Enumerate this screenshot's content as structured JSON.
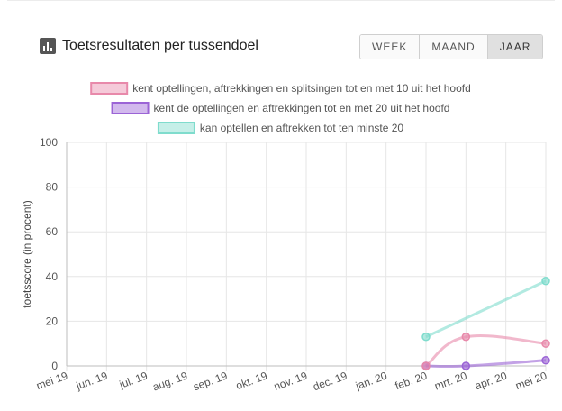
{
  "header": {
    "title": "Toetsresultaten per tussendoel",
    "icon": "bar-chart-icon"
  },
  "period_toggle": {
    "options": [
      "WEEK",
      "MAAND",
      "JAAR"
    ],
    "selected": "JAAR"
  },
  "chart_data": {
    "type": "line",
    "title": "",
    "xlabel": "",
    "ylabel": "toetsscore (in procent)",
    "ylim": [
      0,
      100
    ],
    "yticks": [
      0,
      20,
      40,
      60,
      80,
      100
    ],
    "grid": true,
    "legend_position": "top",
    "categories": [
      "mei 19",
      "jun. 19",
      "jul. 19",
      "aug. 19",
      "sep. 19",
      "okt. 19",
      "nov. 19",
      "dec. 19",
      "jan. 20",
      "feb. 20",
      "mrt. 20",
      "apr. 20",
      "mei 20"
    ],
    "series": [
      {
        "name": "kent optellingen, aftrekkingen en splitsingen tot en met 10 uit het hoofd",
        "color": "#e889aa",
        "values": [
          null,
          null,
          null,
          null,
          null,
          null,
          null,
          null,
          null,
          0,
          13,
          null,
          10
        ]
      },
      {
        "name": "kent de optellingen en aftrekkingen tot en met 20 uit het hoofd",
        "color": "#9b64d6",
        "values": [
          null,
          null,
          null,
          null,
          null,
          null,
          null,
          null,
          null,
          0,
          0,
          null,
          2.5
        ]
      },
      {
        "name": "kan optellen en aftrekken tot ten minste 20",
        "color": "#7fdccd",
        "values": [
          null,
          null,
          null,
          null,
          null,
          null,
          null,
          null,
          null,
          13,
          null,
          null,
          38
        ]
      }
    ]
  }
}
